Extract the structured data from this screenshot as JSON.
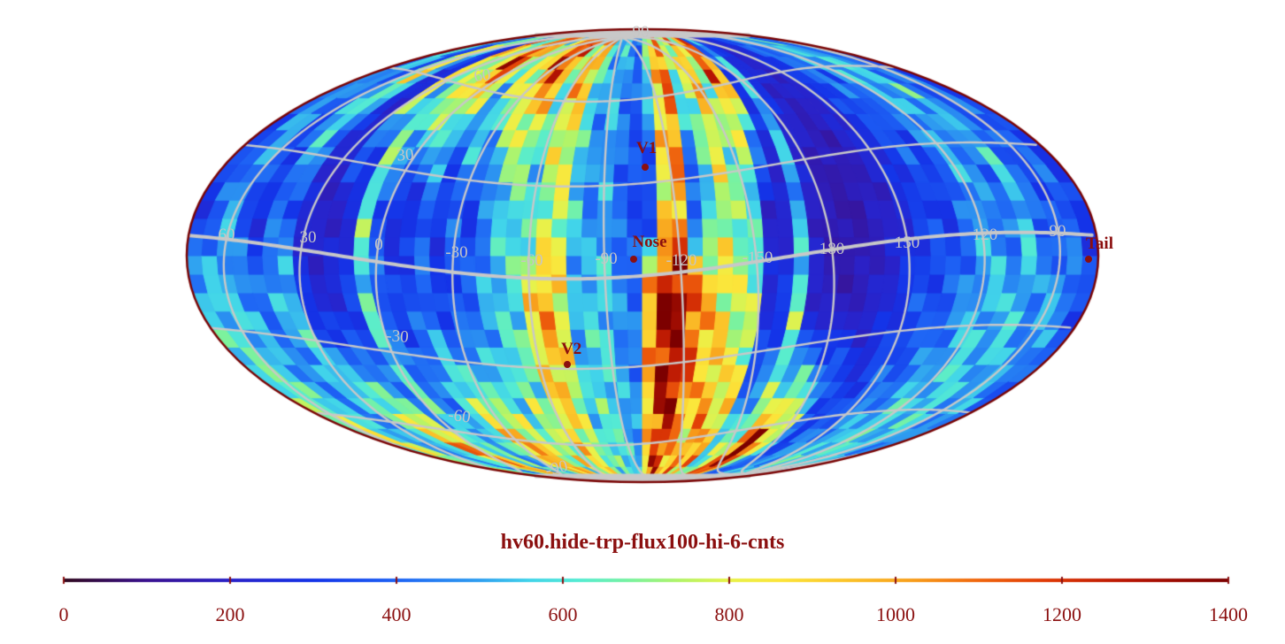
{
  "title": {
    "text": "hv60.hide-trp-flux100-hi-6-cnts",
    "color": "#8b0f0f"
  },
  "map": {
    "projection": "mollweide",
    "center_longitude_deg": -105,
    "outline_color": "#7a0505",
    "background_color": "#ffffff",
    "graticule": {
      "color": "#c8c8c8",
      "meridian_spacing_deg": 30,
      "parallel_spacing_deg": 30,
      "lon_labels": [
        "60",
        "30",
        "0",
        "-30",
        "-60",
        "-90",
        "-120",
        "-150",
        "180",
        "150",
        "120",
        "90"
      ],
      "lat_labels": [
        "90",
        "60",
        "30",
        "-30",
        "-60",
        "-90"
      ]
    },
    "markers": [
      {
        "label": "V1",
        "lon": -106,
        "lat": 29
      },
      {
        "label": "Nose",
        "lon": -101.5,
        "lat": -1
      },
      {
        "label": "V2",
        "lon": -71,
        "lat": -36
      },
      {
        "label": "Tail",
        "lon": 79,
        "lat": -1
      }
    ],
    "marker_color": "#8b0f0f"
  },
  "colorbar": {
    "min": 0,
    "max": 1400,
    "tick_labels": [
      "0",
      "200",
      "400",
      "600",
      "800",
      "1000",
      "1200",
      "1400"
    ],
    "tick_values": [
      0,
      200,
      400,
      600,
      800,
      1000,
      1200,
      1400
    ],
    "label_color": "#8b1010"
  },
  "chart_data": {
    "type": "heatmap",
    "projection": "mollweide",
    "title": "hv60.hide-trp-flux100-hi-6-cnts",
    "value_range": [
      0,
      1400
    ],
    "lon_bin_deg": 6,
    "lat_bin_deg": 6,
    "gray_polar_cap_deg": 84,
    "colorbar_ticks": [
      0,
      200,
      400,
      600,
      800,
      1000,
      1200,
      1400
    ],
    "colormap_stops": [
      [
        0,
        "#30081d"
      ],
      [
        100,
        "#3a1190"
      ],
      [
        200,
        "#2a22c8"
      ],
      [
        300,
        "#1433e8"
      ],
      [
        400,
        "#1e63f5"
      ],
      [
        500,
        "#2f9ff0"
      ],
      [
        560,
        "#41d4ea"
      ],
      [
        620,
        "#55ecd2"
      ],
      [
        680,
        "#79f2a0"
      ],
      [
        740,
        "#b2f468"
      ],
      [
        800,
        "#e8f24a"
      ],
      [
        860,
        "#fce53a"
      ],
      [
        940,
        "#fbc42a"
      ],
      [
        1020,
        "#f89e1b"
      ],
      [
        1100,
        "#f0660e"
      ],
      [
        1180,
        "#e03a06"
      ],
      [
        1280,
        "#b81503"
      ],
      [
        1400,
        "#7c0000"
      ]
    ],
    "column_anchor_lats": [
      68,
      12,
      -12,
      -68
    ],
    "columns_note": "60 longitude columns of 6 deg, left edge lon +75 decreasing westward; each entry = approx counts at lat +68, +12, -12, -68",
    "columns": [
      [
        450,
        300,
        550,
        700
      ],
      [
        550,
        380,
        550,
        850
      ],
      [
        460,
        500,
        520,
        650
      ],
      [
        360,
        360,
        500,
        550
      ],
      [
        700,
        260,
        420,
        460
      ],
      [
        850,
        400,
        500,
        520
      ],
      [
        560,
        380,
        550,
        650
      ],
      [
        300,
        230,
        280,
        1000
      ],
      [
        260,
        200,
        230,
        1000
      ],
      [
        1000,
        200,
        260,
        900
      ],
      [
        700,
        240,
        320,
        550
      ],
      [
        700,
        640,
        600,
        650
      ],
      [
        900,
        360,
        400,
        500
      ],
      [
        1150,
        260,
        320,
        560
      ],
      [
        1150,
        270,
        360,
        700
      ],
      [
        900,
        400,
        400,
        1000
      ],
      [
        620,
        300,
        300,
        980
      ],
      [
        850,
        400,
        360,
        900
      ],
      [
        900,
        310,
        400,
        850
      ],
      [
        1150,
        420,
        500,
        620
      ],
      [
        1200,
        550,
        550,
        850
      ],
      [
        1080,
        600,
        600,
        700
      ],
      [
        660,
        560,
        850,
        900
      ],
      [
        1000,
        700,
        1000,
        800
      ],
      [
        950,
        760,
        850,
        700
      ],
      [
        620,
        560,
        500,
        600
      ],
      [
        500,
        450,
        560,
        650
      ],
      [
        550,
        500,
        560,
        600
      ],
      [
        460,
        400,
        460,
        550
      ],
      [
        400,
        350,
        420,
        500
      ],
      [
        650,
        310,
        1000,
        900
      ],
      [
        900,
        850,
        1350,
        1150
      ],
      [
        1100,
        1000,
        1400,
        1200
      ],
      [
        700,
        360,
        1150,
        1000
      ],
      [
        800,
        560,
        950,
        850
      ],
      [
        1000,
        760,
        850,
        1100
      ],
      [
        700,
        660,
        760,
        900
      ],
      [
        1150,
        560,
        700,
        1000
      ],
      [
        1100,
        210,
        260,
        600
      ],
      [
        350,
        210,
        300,
        700
      ],
      [
        560,
        500,
        650,
        700
      ],
      [
        300,
        200,
        210,
        1150
      ],
      [
        250,
        160,
        170,
        1350
      ],
      [
        220,
        150,
        160,
        1050
      ],
      [
        220,
        150,
        180,
        850
      ],
      [
        250,
        180,
        200,
        500
      ],
      [
        300,
        200,
        250,
        350
      ],
      [
        350,
        250,
        300,
        400
      ],
      [
        400,
        300,
        350,
        450
      ],
      [
        450,
        350,
        350,
        500
      ],
      [
        400,
        300,
        400,
        500
      ],
      [
        500,
        400,
        450,
        550
      ],
      [
        550,
        500,
        500,
        600
      ],
      [
        500,
        450,
        550,
        600
      ],
      [
        550,
        400,
        500,
        550
      ],
      [
        600,
        550,
        550,
        600
      ],
      [
        450,
        400,
        450,
        550
      ],
      [
        400,
        350,
        500,
        500
      ],
      [
        450,
        400,
        450,
        500
      ],
      [
        350,
        300,
        350,
        450
      ]
    ],
    "annotations": [
      {
        "label": "V1",
        "lon": -106,
        "lat": 29
      },
      {
        "label": "Nose",
        "lon": -101.5,
        "lat": -1
      },
      {
        "label": "V2",
        "lon": -71,
        "lat": -36
      },
      {
        "label": "Tail",
        "lon": 79,
        "lat": -1
      }
    ]
  }
}
